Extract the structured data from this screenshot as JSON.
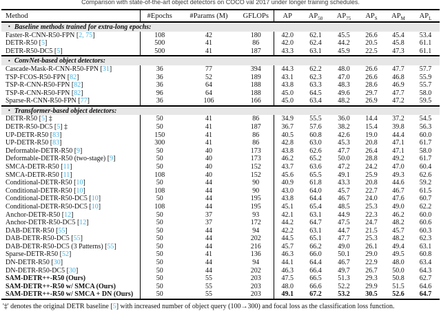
{
  "caption": "Comparison with state-of-the-art object detectors on COCO val 2017 under longer training schedules.",
  "colors": {
    "cite": "#41b2e4",
    "section_bg": "#e7e7e7"
  },
  "table": {
    "bullet": "•",
    "cite_open": "[",
    "cite_close": "]",
    "columns": [
      {
        "key": "method",
        "label": "Method"
      },
      {
        "key": "epochs",
        "label": "#Epochs"
      },
      {
        "key": "params",
        "label": "#Params (M)"
      },
      {
        "key": "gflops",
        "label": "GFLOPs"
      },
      {
        "key": "ap",
        "label": "AP"
      },
      {
        "key": "ap50",
        "label": "AP",
        "sub": "50"
      },
      {
        "key": "ap75",
        "label": "AP",
        "sub": "75"
      },
      {
        "key": "aps",
        "label": "AP",
        "sub": "S"
      },
      {
        "key": "apm",
        "label": "AP",
        "sub": "M"
      },
      {
        "key": "apl",
        "label": "AP",
        "sub": "L"
      }
    ],
    "sections": [
      {
        "title": "Baseline methods trained for extra-long epochs:",
        "rows": [
          {
            "method": "Faster-R-CNN-R50-FPN",
            "cite": "2, 75",
            "values": [
              "108",
              "42",
              "180",
              "42.0",
              "62.1",
              "45.5",
              "26.6",
              "45.4",
              "53.4"
            ]
          },
          {
            "method": "DETR-R50",
            "cite": "5",
            "values": [
              "500",
              "41",
              "86",
              "42.0",
              "62.4",
              "44.2",
              "20.5",
              "45.8",
              "61.1"
            ]
          },
          {
            "method": "DETR-R50-DC5",
            "cite": "5",
            "values": [
              "500",
              "41",
              "187",
              "43.3",
              "63.1",
              "45.9",
              "22.5",
              "47.3",
              "61.1"
            ]
          }
        ]
      },
      {
        "title": "ConvNet-based object detectors:",
        "rows": [
          {
            "method": "Cascade-Mask-R-CNN-R50-FPN",
            "cite": "31",
            "values": [
              "36",
              "77",
              "394",
              "44.3",
              "62.2",
              "48.0",
              "26.6",
              "47.7",
              "57.7"
            ]
          },
          {
            "method": "TSP-FCOS-R50-FPN",
            "cite": "82",
            "values": [
              "36",
              "52",
              "189",
              "43.1",
              "62.3",
              "47.0",
              "26.6",
              "46.8",
              "55.9"
            ]
          },
          {
            "method": "TSP-R-CNN-R50-FPN",
            "cite": "82",
            "values": [
              "36",
              "64",
              "188",
              "43.8",
              "63.3",
              "48.3",
              "28.6",
              "46.9",
              "55.7"
            ]
          },
          {
            "method": "TSP-R-CNN-R50-FPN",
            "cite": "82",
            "values": [
              "96",
              "64",
              "188",
              "45.0",
              "64.5",
              "49.6",
              "29.7",
              "47.7",
              "58.0"
            ]
          },
          {
            "method": "Sparse-R-CNN-R50-FPN",
            "cite": "77",
            "values": [
              "36",
              "106",
              "166",
              "45.0",
              "63.4",
              "48.2",
              "26.9",
              "47.2",
              "59.5"
            ]
          }
        ]
      },
      {
        "title": "Transformer-based object detectors:",
        "rows": [
          {
            "method": "DETR-R50",
            "cite": "5",
            "suffix": "‡",
            "values": [
              "50",
              "41",
              "86",
              "34.9",
              "55.5",
              "36.0",
              "14.4",
              "37.2",
              "54.5"
            ]
          },
          {
            "method": "DETR-R50-DC5",
            "cite": "5",
            "suffix": "‡",
            "values": [
              "50",
              "41",
              "187",
              "36.7",
              "57.6",
              "38.2",
              "15.4",
              "39.8",
              "56.3"
            ]
          },
          {
            "method": "UP-DETR-R50",
            "cite": "83",
            "values": [
              "150",
              "41",
              "86",
              "40.5",
              "60.8",
              "42.6",
              "19.0",
              "44.4",
              "60.0"
            ]
          },
          {
            "method": "UP-DETR-R50",
            "cite": "83",
            "values": [
              "300",
              "41",
              "86",
              "42.8",
              "63.0",
              "45.3",
              "20.8",
              "47.1",
              "61.7"
            ]
          },
          {
            "method": "Deformable-DETR-R50",
            "cite": "9",
            "values": [
              "50",
              "40",
              "173",
              "43.8",
              "62.6",
              "47.7",
              "26.4",
              "47.1",
              "58.0"
            ]
          },
          {
            "method": "Deformable-DETR-R50 (two-stage)",
            "cite": "9",
            "values": [
              "50",
              "40",
              "173",
              "46.2",
              "65.2",
              "50.0",
              "28.8",
              "49.2",
              "61.7"
            ]
          },
          {
            "method": "SMCA-DETR-R50",
            "cite": "11",
            "values": [
              "50",
              "40",
              "152",
              "43.7",
              "63.6",
              "47.2",
              "24.2",
              "47.0",
              "60.4"
            ]
          },
          {
            "method": "SMCA-DETR-R50",
            "cite": "11",
            "values": [
              "108",
              "40",
              "152",
              "45.6",
              "65.5",
              "49.1",
              "25.9",
              "49.3",
              "62.6"
            ]
          },
          {
            "method": "Conditional-DETR-R50",
            "cite": "10",
            "values": [
              "50",
              "44",
              "90",
              "40.9",
              "61.8",
              "43.3",
              "20.8",
              "44.6",
              "59.2"
            ]
          },
          {
            "method": "Conditional-DETR-R50",
            "cite": "10",
            "values": [
              "108",
              "44",
              "90",
              "43.0",
              "64.0",
              "45.7",
              "22.7",
              "46.7",
              "61.5"
            ]
          },
          {
            "method": "Conditional-DETR-R50-DC5",
            "cite": "10",
            "values": [
              "50",
              "44",
              "195",
              "43.8",
              "64.4",
              "46.7",
              "24.0",
              "47.6",
              "60.7"
            ]
          },
          {
            "method": "Conditional-DETR-R50-DC5",
            "cite": "10",
            "values": [
              "108",
              "44",
              "195",
              "45.1",
              "65.4",
              "48.5",
              "25.3",
              "49.0",
              "62.2"
            ]
          },
          {
            "method": "Anchor-DETR-R50",
            "cite": "12",
            "values": [
              "50",
              "37",
              "93",
              "42.1",
              "63.1",
              "44.9",
              "22.3",
              "46.2",
              "60.0"
            ]
          },
          {
            "method": "Anchor-DETR-R50-DC5",
            "cite": "12",
            "values": [
              "50",
              "37",
              "172",
              "44.2",
              "64.7",
              "47.5",
              "24.7",
              "48.2",
              "60.6"
            ]
          },
          {
            "method": "DAB-DETR-R50",
            "cite": "55",
            "values": [
              "50",
              "44",
              "94",
              "42.2",
              "63.1",
              "44.7",
              "21.5",
              "45.7",
              "60.3"
            ]
          },
          {
            "method": "DAB-DETR-R50-DC5",
            "cite": "55",
            "values": [
              "50",
              "44",
              "202",
              "44.5",
              "65.1",
              "47.7",
              "25.3",
              "48.2",
              "62.3"
            ]
          },
          {
            "method": "DAB-DETR-R50-DC5 (3 Patterns)",
            "cite": "55",
            "values": [
              "50",
              "44",
              "216",
              "45.7",
              "66.2",
              "49.0",
              "26.1",
              "49.4",
              "63.1"
            ]
          },
          {
            "method": "Sparse-DETR-R50",
            "cite": "52",
            "values": [
              "50",
              "41",
              "136",
              "46.3",
              "66.0",
              "50.1",
              "29.0",
              "49.5",
              "60.8"
            ]
          },
          {
            "method": "DN-DETR-R50",
            "cite": "30",
            "values": [
              "50",
              "44",
              "94",
              "44.1",
              "64.4",
              "46.7",
              "22.9",
              "48.0",
              "63.4"
            ]
          },
          {
            "method": "DN-DETR-R50-DC5",
            "cite": "30",
            "values": [
              "50",
              "44",
              "202",
              "46.3",
              "66.4",
              "49.7",
              "26.7",
              "50.0",
              "64.3"
            ]
          },
          {
            "method": "SAM-DETR++-R50 (Ours)",
            "bold": true,
            "values": [
              "50",
              "55",
              "203",
              "47.5",
              "66.5",
              "51.3",
              "29.3",
              "50.8",
              "62.7"
            ]
          },
          {
            "method": "SAM-DETR++-R50 w/ SMCA (Ours)",
            "bold": true,
            "values": [
              "50",
              "55",
              "203",
              "48.0",
              "66.6",
              "52.2",
              "29.9",
              "51.5",
              "64.6"
            ]
          },
          {
            "method": "SAM-DETR++-R50 w/ SMCA + DN (Ours)",
            "bold": true,
            "bold_metrics": true,
            "values": [
              "50",
              "55",
              "203",
              "49.1",
              "67.2",
              "53.2",
              "30.5",
              "52.6",
              "64.7"
            ]
          }
        ]
      }
    ]
  },
  "footnote": {
    "pre": "'‡' denotes the original DETR baseline [",
    "cite": "5",
    "post": "] with increased number of object query (100→300) and focal loss as the classification loss function."
  }
}
